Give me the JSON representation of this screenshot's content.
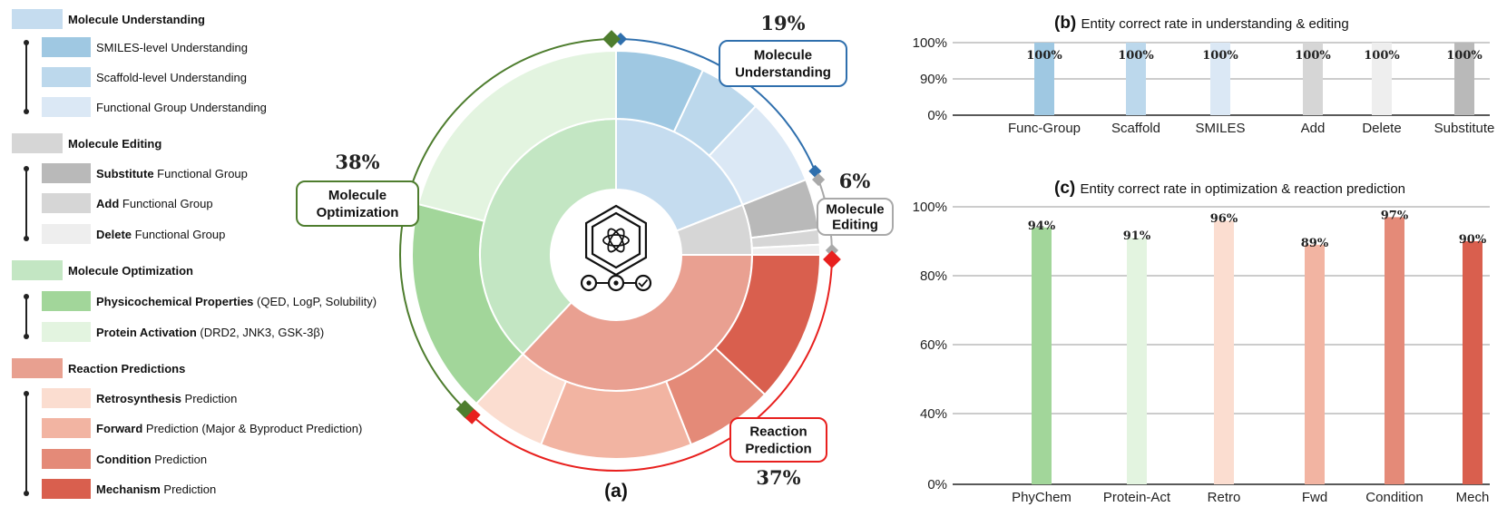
{
  "legend": [
    {
      "head": "Molecule Understanding",
      "color": "#c5dcef",
      "items": [
        {
          "bold": "",
          "rest": "SMILES-level Understanding",
          "color": "#9fc8e2"
        },
        {
          "bold": "",
          "rest": "Scaffold-level Understanding",
          "color": "#bcd8ec"
        },
        {
          "bold": "",
          "rest": "Functional Group Understanding",
          "color": "#dbe8f5"
        }
      ]
    },
    {
      "head": "Molecule Editing",
      "color": "#d6d6d6",
      "items": [
        {
          "bold": "Substitute",
          "rest": " Functional Group",
          "color": "#b9b9b9"
        },
        {
          "bold": "Add",
          "rest": " Functional Group",
          "color": "#d6d6d6"
        },
        {
          "bold": "Delete",
          "rest": " Functional Group",
          "color": "#eeeeee"
        }
      ]
    },
    {
      "head": "Molecule Optimization",
      "color": "#c3e6c3",
      "items": [
        {
          "bold": "Physicochemical Properties",
          "rest": " (QED, LogP, Solubility)",
          "color": "#a2d69a"
        },
        {
          "bold": "Protein Activation",
          "rest": " (DRD2, JNK3, GSK-3β)",
          "color": "#e3f4e0"
        }
      ]
    },
    {
      "head": "Reaction Predictions",
      "color": "#e8a090",
      "items": [
        {
          "bold": "Retrosynthesis",
          "rest": " Prediction",
          "color": "#fbddd0"
        },
        {
          "bold": "Forward",
          "rest": " Prediction (Major & Byproduct Prediction)",
          "color": "#f2b4a2"
        },
        {
          "bold": "Condition",
          "rest": " Prediction",
          "color": "#e48a78"
        },
        {
          "bold": "Mechanism",
          "rest": " Prediction",
          "color": "#d95f4e"
        }
      ]
    }
  ],
  "sunburst": {
    "label": "(a)",
    "inner": [
      {
        "name": "Molecule Understanding",
        "value": 19,
        "color": "#c5dcef"
      },
      {
        "name": "Molecule Editing",
        "value": 6,
        "color": "#d6d6d6"
      },
      {
        "name": "Reaction Predictions",
        "value": 37,
        "color": "#e9a091"
      },
      {
        "name": "Molecule Optimization",
        "value": 38,
        "color": "#c3e6c3"
      }
    ],
    "outer": [
      {
        "name": "SMILES-level Understanding",
        "value": 7.0,
        "color": "#9fc8e2"
      },
      {
        "name": "Scaffold-level Understanding",
        "value": 5.0,
        "color": "#bcd8ec"
      },
      {
        "name": "Functional Group Understanding",
        "value": 7.0,
        "color": "#dbe8f5"
      },
      {
        "name": "Substitute Functional Group",
        "value": 4.0,
        "color": "#b9b9b9"
      },
      {
        "name": "Add Functional Group",
        "value": 1.2,
        "color": "#d6d6d6"
      },
      {
        "name": "Delete Functional Group",
        "value": 0.8,
        "color": "#eeeeee"
      },
      {
        "name": "Mechanism Prediction",
        "value": 12.0,
        "color": "#d95f4e"
      },
      {
        "name": "Condition Prediction",
        "value": 7.0,
        "color": "#e48a78"
      },
      {
        "name": "Forward Prediction",
        "value": 12.0,
        "color": "#f2b4a2"
      },
      {
        "name": "Retrosynthesis Prediction",
        "value": 6.0,
        "color": "#fbddd0"
      },
      {
        "name": "Physicochemical Properties",
        "value": 17.0,
        "color": "#a2d69a"
      },
      {
        "name": "Protein Activation",
        "value": 21.0,
        "color": "#e3f4e0"
      }
    ],
    "callouts": [
      {
        "key": "understanding",
        "pct": "19%",
        "line1": "Molecule",
        "line2": "Understanding",
        "color": "#2f6fad"
      },
      {
        "key": "editing",
        "pct": "6%",
        "line1": "Molecule",
        "line2": "Editing",
        "color": "#a9a9a9"
      },
      {
        "key": "reaction",
        "pct": "37%",
        "line1": "Reaction",
        "line2": "Prediction",
        "color": "#e8201e"
      },
      {
        "key": "optimization",
        "pct": "38%",
        "line1": "Molecule",
        "line2": "Optimization",
        "color": "#4e7d2e"
      }
    ]
  },
  "chart_data": [
    {
      "type": "bar",
      "title": "Entity correct rate in understanding & editing",
      "title_prefix": "(b)",
      "categories": [
        "Func-Group",
        "Scaffold",
        "SMILES",
        "Add",
        "Delete",
        "Substitute"
      ],
      "values": [
        100,
        100,
        100,
        100,
        100,
        100
      ],
      "value_labels": [
        "100%",
        "100%",
        "100%",
        "100%",
        "100%",
        "100%"
      ],
      "colors": [
        "#9fc8e2",
        "#bcd8ec",
        "#dbe8f5",
        "#d6d6d6",
        "#eeeeee",
        "#b9b9b9"
      ],
      "yticks": [
        "0%",
        "90%",
        "100%"
      ],
      "ylim": [
        0,
        100
      ],
      "grid": true
    },
    {
      "type": "bar",
      "title": "Entity correct rate in optimization & reaction prediction",
      "title_prefix": "(c)",
      "categories": [
        "PhyChem",
        "Protein-Act",
        "Retro",
        "Fwd",
        "Condition",
        "Mech"
      ],
      "values": [
        94,
        91,
        96,
        89,
        97,
        90
      ],
      "value_labels": [
        "94%",
        "91%",
        "96%",
        "89%",
        "97%",
        "90%"
      ],
      "colors": [
        "#a2d69a",
        "#e3f4e0",
        "#fbddd0",
        "#f2b4a2",
        "#e48a78",
        "#d95f4e"
      ],
      "yticks": [
        "0%",
        "40%",
        "60%",
        "80%",
        "100%"
      ],
      "ylim": [
        0,
        100
      ],
      "grid": true
    }
  ]
}
